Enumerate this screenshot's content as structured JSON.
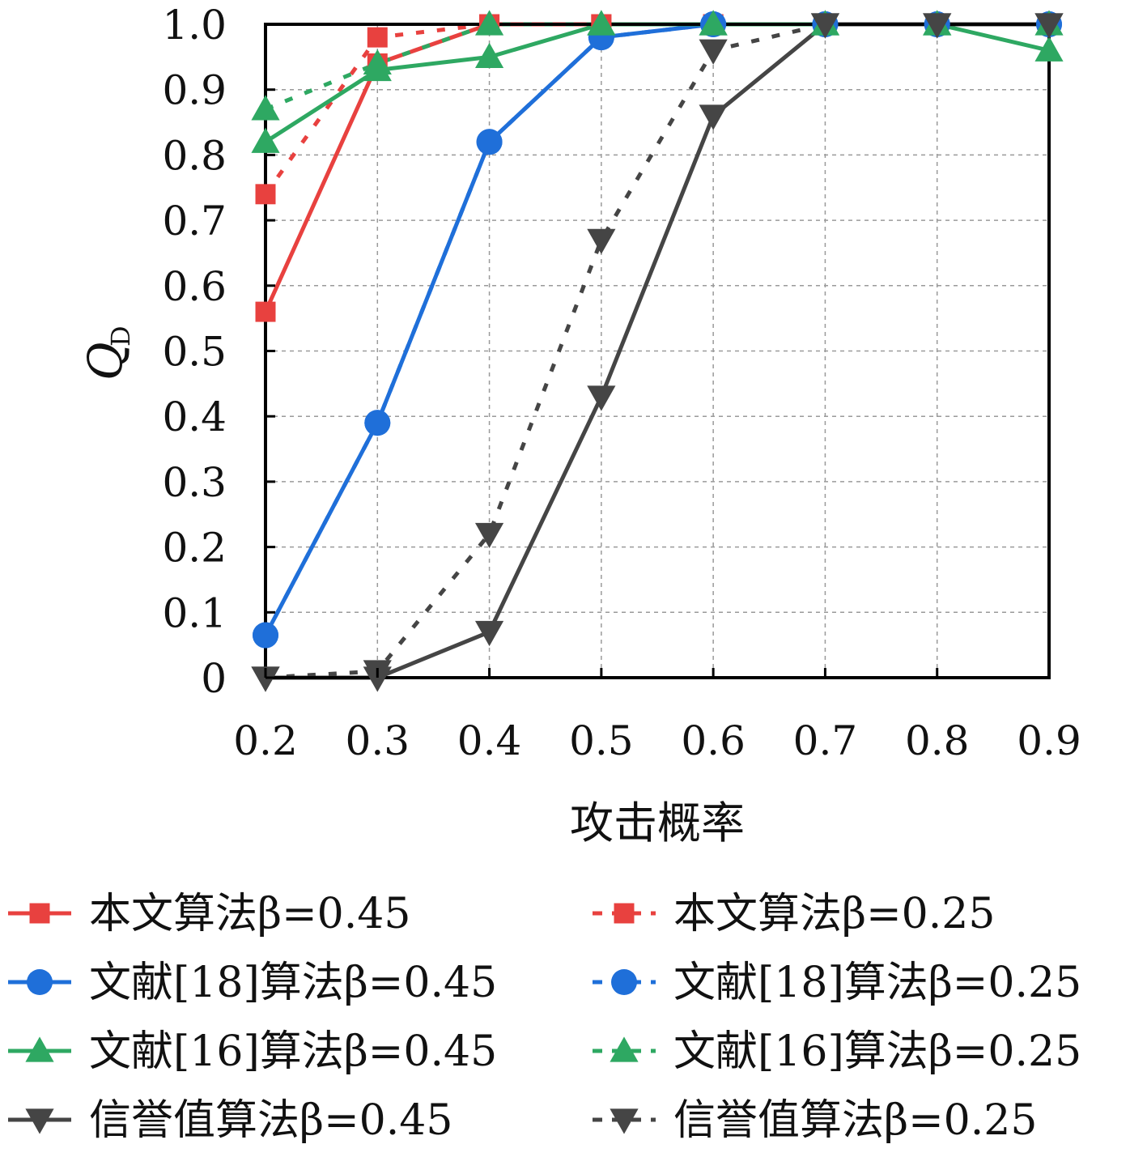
{
  "chart_data": {
    "type": "line",
    "title": "",
    "xlabel": "攻击概率",
    "ylabel": "Q",
    "ylabel_sub": "D",
    "xlim": [
      0.2,
      0.9
    ],
    "ylim": [
      0,
      1.0
    ],
    "x": [
      0.2,
      0.3,
      0.4,
      0.5,
      0.6,
      0.7,
      0.8,
      0.9
    ],
    "x_tick_labels": [
      "0.2",
      "0.3",
      "0.4",
      "0.5",
      "0.6",
      "0.7",
      "0.8",
      "0.9"
    ],
    "y_tick_labels": [
      "0",
      "0.1",
      "0.2",
      "0.3",
      "0.4",
      "0.5",
      "0.6",
      "0.7",
      "0.8",
      "0.9",
      "1.0"
    ],
    "grid": true,
    "legend_position": "bottom, two columns",
    "series": [
      {
        "name": "本文算法β=0.45",
        "color": "#e8413f",
        "marker": "square",
        "dash": "solid",
        "values": [
          0.56,
          0.94,
          1.0,
          1.0,
          1.0,
          1.0,
          1.0,
          1.0
        ]
      },
      {
        "name": "本文算法β=0.25",
        "color": "#e8413f",
        "marker": "square",
        "dash": "dashed",
        "values": [
          0.74,
          0.98,
          1.0,
          1.0,
          1.0,
          1.0,
          1.0,
          1.0
        ]
      },
      {
        "name": "文献[18]算法β=0.45",
        "color": "#1f6fd9",
        "marker": "circle",
        "dash": "solid",
        "values": [
          0.065,
          0.39,
          0.82,
          0.98,
          1.0,
          1.0,
          1.0,
          1.0
        ]
      },
      {
        "name": "文献[18]算法β=0.25",
        "color": "#1f6fd9",
        "marker": "circle",
        "dash": "dashed",
        "values": [
          0.065,
          0.39,
          0.82,
          0.98,
          1.0,
          1.0,
          1.0,
          1.0
        ]
      },
      {
        "name": "文献[16]算法β=0.45",
        "color": "#2ea862",
        "marker": "triangle-up",
        "dash": "solid",
        "values": [
          0.82,
          0.93,
          0.95,
          1.0,
          1.0,
          1.0,
          1.0,
          0.96
        ]
      },
      {
        "name": "文献[16]算法β=0.25",
        "color": "#2ea862",
        "marker": "triangle-up",
        "dash": "dashed",
        "values": [
          0.87,
          0.94,
          1.0,
          1.0,
          1.0,
          1.0,
          1.0,
          1.0
        ]
      },
      {
        "name": "信誉值算法β=0.45",
        "color": "#454545",
        "marker": "triangle-down",
        "dash": "solid",
        "values": [
          0.0,
          0.0,
          0.07,
          0.43,
          0.86,
          1.0,
          1.0,
          1.0
        ]
      },
      {
        "name": "信誉值算法β=0.25",
        "color": "#454545",
        "marker": "triangle-down",
        "dash": "dashed",
        "values": [
          0.0,
          0.01,
          0.22,
          0.67,
          0.96,
          1.0,
          1.0,
          1.0
        ]
      }
    ]
  }
}
